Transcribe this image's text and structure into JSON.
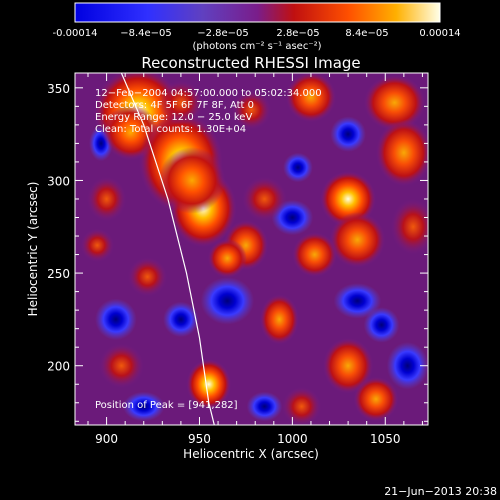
{
  "chart_data": {
    "type": "heatmap",
    "title": "Reconstructed RHESSI Image",
    "xlabel": "Heliocentric X (arcsec)",
    "ylabel": "Heliocentric Y (arcsec)",
    "xlim": [
      883,
      1073
    ],
    "ylim": [
      168,
      358
    ],
    "x_ticks": [
      900,
      950,
      1000,
      1050
    ],
    "y_ticks": [
      200,
      250,
      300,
      350
    ],
    "colorbar": {
      "ticks": [
        "-0.00014",
        "−8.4e−05",
        "−2.8e−05",
        "2.8e−05",
        "8.4e−05",
        "0.00014"
      ],
      "unit_label": "(photons cm⁻² s⁻¹ asec⁻²)",
      "range": [
        -0.00014,
        0.00014
      ]
    },
    "annotations": [
      "12−Feb−2004 04:57:00.000 to 05:02:34.000",
      "Detectors: 4F 5F 6F 7F 8F, Att 0",
      "Energy Range: 12.0 − 25.0 keV",
      "Clean: Total counts: 1.30E+04"
    ],
    "peak_label": "Position of Peak = [941,282]",
    "peak": [
      941,
      282
    ],
    "limb_curve": [
      [
        908,
        358
      ],
      [
        920,
        330
      ],
      [
        933,
        290
      ],
      [
        943,
        250
      ],
      [
        950,
        215
      ],
      [
        955,
        180
      ],
      [
        958,
        168
      ]
    ],
    "blobs": [
      [
        917,
        337,
        16,
        16,
        0.98
      ],
      [
        913,
        326,
        10,
        10,
        0.6
      ],
      [
        940,
        310,
        15,
        18,
        0.85
      ],
      [
        952,
        285,
        12,
        14,
        0.8
      ],
      [
        946,
        300,
        12,
        12,
        0.6
      ],
      [
        975,
        265,
        8,
        9,
        0.6
      ],
      [
        985,
        290,
        8,
        8,
        0.5
      ],
      [
        1010,
        345,
        9,
        9,
        0.6
      ],
      [
        1055,
        342,
        11,
        10,
        0.55
      ],
      [
        1060,
        315,
        10,
        12,
        0.6
      ],
      [
        1065,
        275,
        8,
        10,
        0.5
      ],
      [
        1030,
        290,
        10,
        10,
        0.8
      ],
      [
        1035,
        268,
        10,
        10,
        0.55
      ],
      [
        1012,
        260,
        8,
        8,
        0.6
      ],
      [
        993,
        225,
        7,
        9,
        0.55
      ],
      [
        1030,
        200,
        9,
        10,
        0.7
      ],
      [
        1045,
        182,
        8,
        8,
        0.6
      ],
      [
        955,
        190,
        8,
        9,
        1.0
      ],
      [
        908,
        200,
        8,
        8,
        0.45
      ],
      [
        922,
        248,
        7,
        7,
        0.5
      ],
      [
        1005,
        178,
        7,
        7,
        0.45
      ],
      [
        965,
        258,
        7,
        7,
        0.7
      ],
      [
        940,
        342,
        8,
        8,
        0.5
      ],
      [
        895,
        265,
        6,
        6,
        0.45
      ],
      [
        900,
        290,
        7,
        8,
        0.4
      ],
      [
        978,
        338,
        7,
        7,
        0.4
      ]
    ],
    "cold_spots": [
      [
        1003,
        307,
        5,
        5,
        -1.0
      ],
      [
        1062,
        200,
        7,
        8,
        -0.9
      ],
      [
        1030,
        325,
        6,
        6,
        -0.7
      ],
      [
        1035,
        235,
        8,
        6,
        -0.6
      ],
      [
        897,
        320,
        4,
        6,
        -0.6
      ],
      [
        905,
        225,
        7,
        7,
        -0.45
      ],
      [
        965,
        235,
        9,
        8,
        -0.5
      ],
      [
        1000,
        280,
        7,
        6,
        -0.45
      ],
      [
        1048,
        222,
        6,
        6,
        -0.5
      ],
      [
        920,
        178,
        7,
        5,
        -0.5
      ],
      [
        985,
        178,
        6,
        5,
        -0.5
      ],
      [
        940,
        225,
        6,
        6,
        -0.5
      ]
    ]
  },
  "footer": {
    "timestamp": "21−Jun−2013 20:38"
  }
}
